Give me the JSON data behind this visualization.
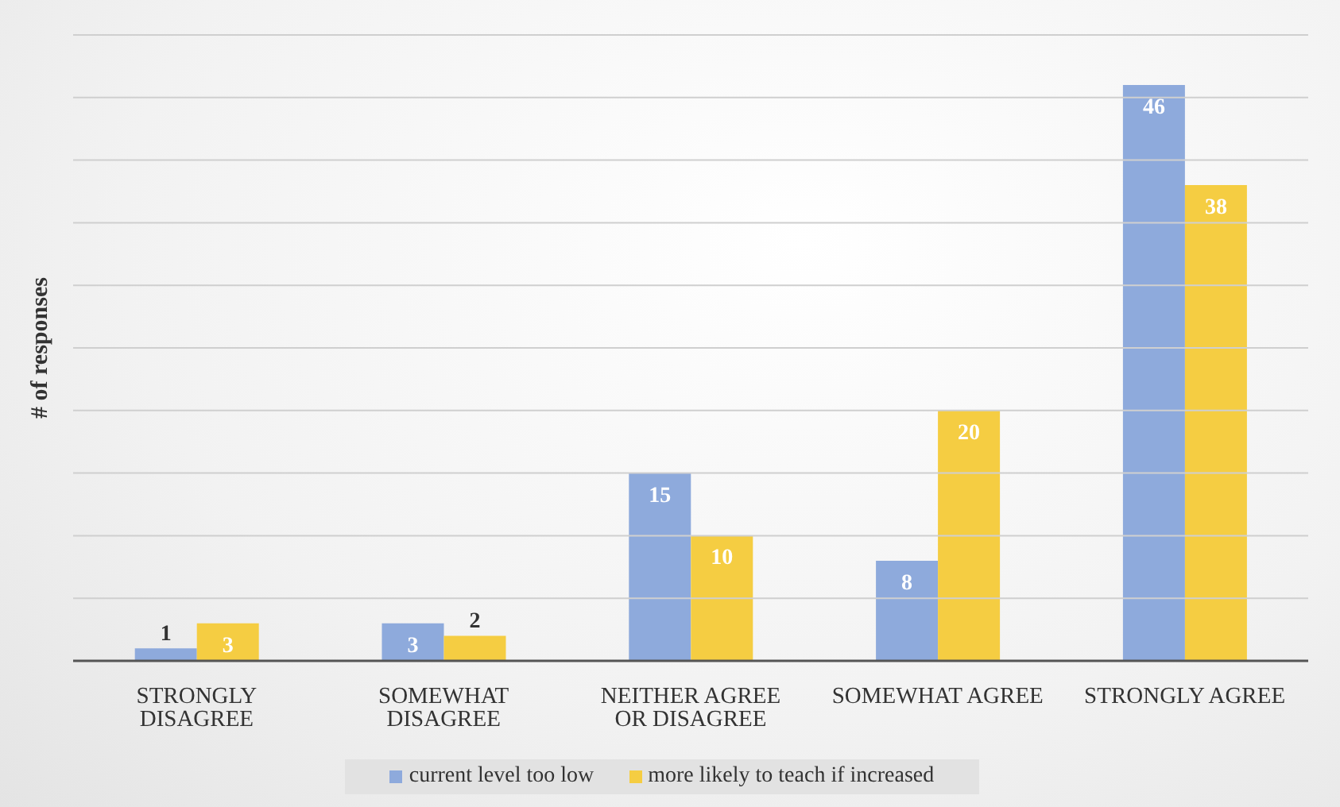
{
  "chart_data": {
    "type": "bar",
    "ylabel": "# of responses",
    "categories": [
      "STRONGLY DISAGREE",
      "SOMEWHAT DISAGREE",
      "NEITHER AGREE OR DISAGREE",
      "SOMEWHAT AGREE",
      "STRONGLY AGREE"
    ],
    "series": [
      {
        "name": "current level too low",
        "color": "#8eaadc",
        "values": [
          1,
          3,
          15,
          8,
          46
        ]
      },
      {
        "name": "more likely to teach if increased",
        "color": "#f5cd42",
        "values": [
          3,
          2,
          10,
          20,
          38
        ]
      }
    ],
    "ylim": [
      0,
      50
    ],
    "yticks": [
      {
        "value": 0,
        "label": null
      },
      {
        "value": 5,
        "label": null
      },
      {
        "value": 10,
        "label": null
      },
      {
        "value": 15,
        "label": null
      },
      {
        "value": 20,
        "label": null
      },
      {
        "value": 25,
        "label": null
      },
      {
        "value": 30,
        "label": null
      },
      {
        "value": 35,
        "label": null
      },
      {
        "value": 40,
        "label": null
      },
      {
        "value": 45,
        "label": null
      },
      {
        "value": 50,
        "label": null
      }
    ],
    "tick_labels": "x",
    "grid": "y",
    "legend": "bottom",
    "data_labels": true
  }
}
